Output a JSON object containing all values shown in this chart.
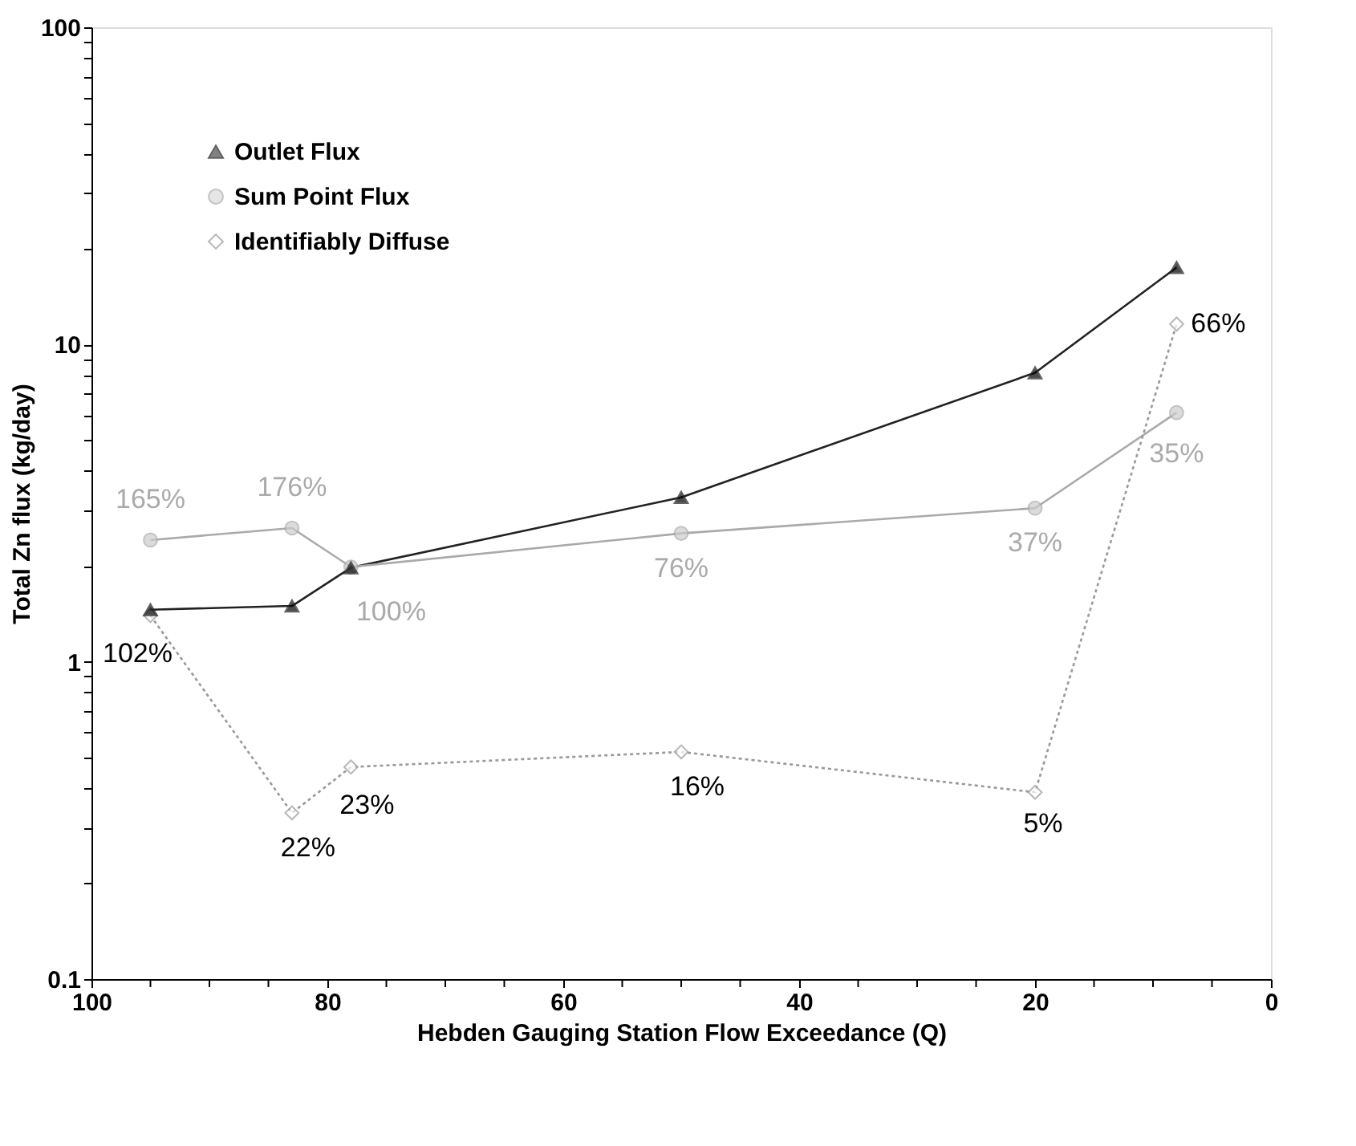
{
  "chart_data": {
    "type": "line",
    "xlabel": "Hebden Gauging Station Flow Exceedance (Q)",
    "ylabel": "Total Zn flux (kg/day)",
    "x": [
      95,
      83,
      78,
      50,
      20,
      8
    ],
    "series": [
      {
        "name": "Outlet Flux",
        "color": "#222222",
        "marker": "triangle",
        "line_style": "solid",
        "values": [
          1.46,
          1.5,
          1.98,
          3.3,
          8.15,
          17.5
        ]
      },
      {
        "name": "Sum Point Flux",
        "color": "#aaaaaa",
        "marker": "circle",
        "line_style": "solid",
        "values": [
          2.42,
          2.64,
          1.99,
          2.54,
          3.05,
          6.1
        ]
      },
      {
        "name": "Identifiably Diffuse",
        "color": "#999999",
        "marker": "diamond",
        "line_style": "dotted",
        "values": [
          1.4,
          0.334,
          0.466,
          0.52,
          0.388,
          11.6
        ]
      }
    ],
    "annotations": [
      {
        "text": "165%",
        "x": 95,
        "y": 2.42
      },
      {
        "text": "176%",
        "x": 83,
        "y": 2.64
      },
      {
        "text": "100%",
        "x": 78,
        "y": 1.99
      },
      {
        "text": "76%",
        "x": 50,
        "y": 2.54
      },
      {
        "text": "37%",
        "x": 20,
        "y": 3.05
      },
      {
        "text": "35%",
        "x": 8,
        "y": 6.1
      },
      {
        "text": "102%",
        "x": 95,
        "y": 1.4
      },
      {
        "text": "22%",
        "x": 83,
        "y": 0.334
      },
      {
        "text": "23%",
        "x": 78,
        "y": 0.466
      },
      {
        "text": "16%",
        "x": 50,
        "y": 0.52
      },
      {
        "text": "5%",
        "x": 20,
        "y": 0.388
      },
      {
        "text": "66%",
        "x": 8,
        "y": 11.6
      }
    ],
    "log": "y",
    "xlim": [
      100,
      0
    ],
    "ylim": [
      0.1,
      100
    ],
    "xticks": [
      100,
      {
        "value": 95,
        "label": null
      },
      {
        "value": 90,
        "label": null
      },
      {
        "value": 85,
        "label": null
      },
      80,
      {
        "value": 75,
        "label": null
      },
      {
        "value": 70,
        "label": null
      },
      {
        "value": 65,
        "label": null
      },
      60,
      {
        "value": 55,
        "label": null
      },
      {
        "value": 50,
        "label": null
      },
      {
        "value": 45,
        "label": null
      },
      40,
      {
        "value": 35,
        "label": null
      },
      {
        "value": 30,
        "label": null
      },
      {
        "value": 25,
        "label": null
      },
      20,
      {
        "value": 15,
        "label": null
      },
      {
        "value": 10,
        "label": null
      },
      {
        "value": 5,
        "label": null
      },
      0
    ],
    "yticks": [
      0.1,
      {
        "value": 0.2,
        "label": null
      },
      {
        "value": 0.3,
        "label": null
      },
      {
        "value": 0.4,
        "label": null
      },
      {
        "value": 0.5,
        "label": null
      },
      {
        "value": 0.6,
        "label": null
      },
      {
        "value": 0.7,
        "label": null
      },
      {
        "value": 0.8,
        "label": null
      },
      {
        "value": 0.9,
        "label": null
      },
      1,
      {
        "value": 2,
        "label": null
      },
      {
        "value": 3,
        "label": null
      },
      {
        "value": 4,
        "label": null
      },
      {
        "value": 5,
        "label": null
      },
      {
        "value": 6,
        "label": null
      },
      {
        "value": 7,
        "label": null
      },
      {
        "value": 8,
        "label": null
      },
      {
        "value": 9,
        "label": null
      },
      10,
      {
        "value": 20,
        "label": null
      },
      {
        "value": 30,
        "label": null
      },
      {
        "value": 40,
        "label": null
      },
      {
        "value": 50,
        "label": null
      },
      {
        "value": 60,
        "label": null
      },
      {
        "value": 70,
        "label": null
      },
      {
        "value": 80,
        "label": null
      },
      {
        "value": 90,
        "label": null
      },
      100
    ],
    "grid": false,
    "legend": "top left"
  }
}
